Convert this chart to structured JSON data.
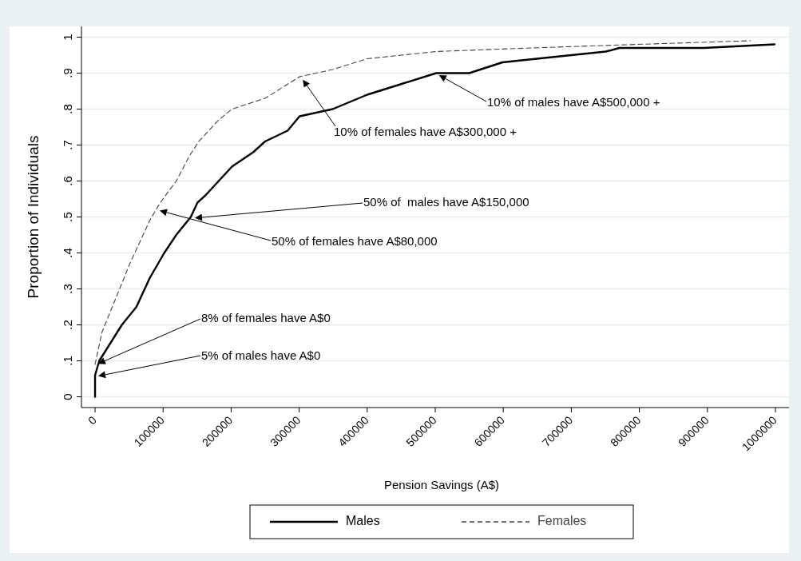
{
  "chart_data": {
    "type": "line",
    "xlabel": "Pension Savings (A$)",
    "ylabel": "Proportion of Individuals",
    "xlim": [
      -20000,
      1020000
    ],
    "ylim": [
      -0.03,
      1.03
    ],
    "xticks": [
      0,
      100000,
      200000,
      300000,
      400000,
      500000,
      600000,
      700000,
      800000,
      900000,
      1000000
    ],
    "yticks": [
      0,
      {
        "value": 0.1,
        "label": ".1"
      },
      {
        "value": 0.2,
        "label": ".2"
      },
      {
        "value": 0.3,
        "label": ".3"
      },
      {
        "value": 0.4,
        "label": ".4"
      },
      {
        "value": 0.5,
        "label": ".5"
      },
      {
        "value": 0.6,
        "label": ".6"
      },
      {
        "value": 0.7,
        "label": ".7"
      },
      {
        "value": 0.8,
        "label": ".8"
      },
      {
        "value": 0.9,
        "label": ".9"
      },
      1
    ],
    "grid": "y",
    "legend": "bottom",
    "series": [
      {
        "name": "Males",
        "color": "#000000",
        "line_style": "solid",
        "x": [
          0,
          0,
          6200,
          39400,
          60800,
          80300,
          101700,
          119300,
          140700,
          150500,
          162200,
          181700,
          201200,
          232400,
          249900,
          283000,
          300600,
          349300,
          400000,
          450700,
          501400,
          550000,
          598800,
          649100,
          750900,
          770800,
          894700,
          998800
        ],
        "values": [
          0,
          0.06,
          0.1,
          0.2,
          0.25,
          0.33,
          0.4,
          0.45,
          0.5,
          0.54,
          0.56,
          0.6,
          0.64,
          0.68,
          0.71,
          0.74,
          0.78,
          0.8,
          0.84,
          0.87,
          0.9,
          0.9,
          0.93,
          0.94,
          0.96,
          0.97,
          0.97,
          0.98
        ]
      },
      {
        "name": "Females",
        "color": "#444444",
        "line_style": "dashed",
        "x": [
          0,
          10200,
          29600,
          51100,
          60800,
          80300,
          95900,
          119300,
          138800,
          152400,
          181700,
          201200,
          249900,
          300600,
          349300,
          400000,
          501400,
          641700,
          797700,
          963400
        ],
        "values": [
          0.09,
          0.18,
          0.27,
          0.37,
          0.41,
          0.49,
          0.54,
          0.6,
          0.67,
          0.71,
          0.77,
          0.8,
          0.83,
          0.89,
          0.91,
          0.94,
          0.96,
          0.97,
          0.98,
          0.99
        ]
      }
    ],
    "annotations": [
      "10% of males have A$500,000 +",
      "10% of females have A$300,000 +",
      "50% of  males have A$150,000",
      "50% of females have A$80,000",
      "8% of females have A$0",
      "5% of males have A$0"
    ]
  }
}
